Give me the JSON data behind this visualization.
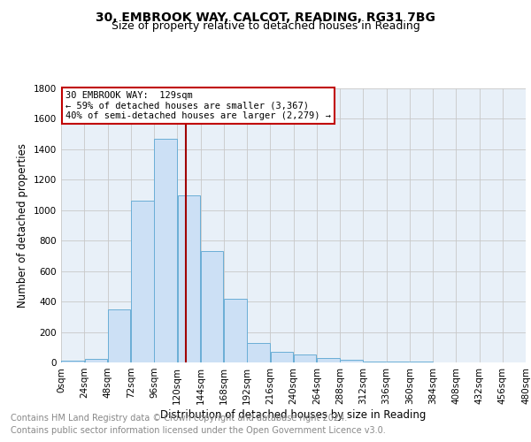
{
  "title": "30, EMBROOK WAY, CALCOT, READING, RG31 7BG",
  "subtitle": "Size of property relative to detached houses in Reading",
  "xlabel": "Distribution of detached houses by size in Reading",
  "ylabel": "Number of detached properties",
  "footnote1": "Contains HM Land Registry data © Crown copyright and database right 2024.",
  "footnote2": "Contains public sector information licensed under the Open Government Licence v3.0.",
  "annotation_line1": "30 EMBROOK WAY:  129sqm",
  "annotation_line2": "← 59% of detached houses are smaller (3,367)",
  "annotation_line3": "40% of semi-detached houses are larger (2,279) →",
  "property_size": 129,
  "bar_edges": [
    0,
    24,
    48,
    72,
    96,
    120,
    144,
    168,
    192,
    216,
    240,
    264,
    288,
    312,
    336,
    360,
    384,
    408,
    432,
    456,
    480
  ],
  "bar_heights": [
    10,
    25,
    350,
    1060,
    1470,
    1100,
    730,
    420,
    130,
    70,
    50,
    30,
    15,
    8,
    5,
    3,
    2,
    1,
    1,
    0
  ],
  "bar_color": "#cce0f5",
  "bar_edge_color": "#6aaed6",
  "vline_color": "#a00000",
  "vline_x": 129,
  "ylim": [
    0,
    1800
  ],
  "yticks": [
    0,
    200,
    400,
    600,
    800,
    1000,
    1200,
    1400,
    1600,
    1800
  ],
  "grid_color": "#c8c8c8",
  "background_color": "#e8f0f8",
  "annotation_box_facecolor": "#ffffff",
  "annotation_box_edgecolor": "#c00000",
  "title_fontsize": 10,
  "subtitle_fontsize": 9,
  "label_fontsize": 8.5,
  "tick_fontsize": 7.5,
  "annotation_fontsize": 7.5,
  "footnote_fontsize": 7
}
